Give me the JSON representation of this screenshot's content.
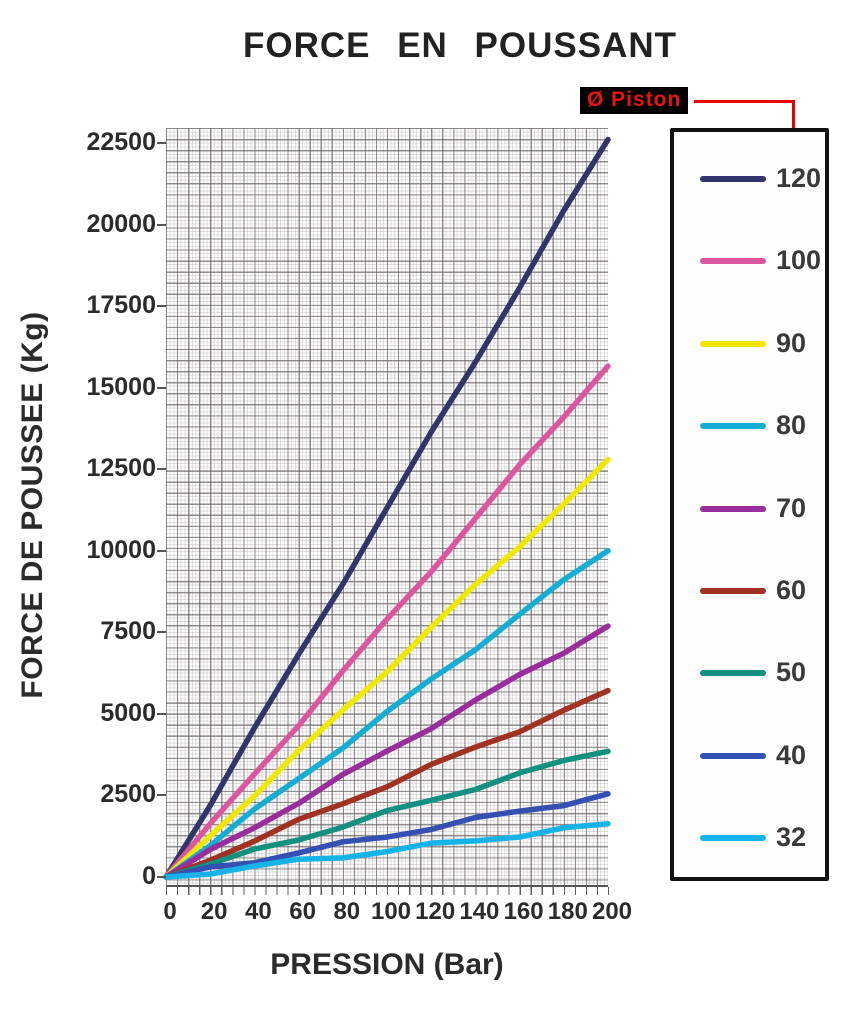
{
  "title": "FORCE EN POUSSANT",
  "axes": {
    "x_label": "PRESSION (Bar)",
    "y_label": "FORCE DE POUSSEE (Kg)",
    "x_tick_labels": [
      "0",
      "20",
      "40",
      "60",
      "80",
      "100",
      "120",
      "140",
      "160",
      "180",
      "200"
    ],
    "y_tick_labels": [
      "0",
      "2500",
      "5000",
      "7500",
      "10000",
      "12500",
      "15000",
      "17500",
      "20000",
      "22500"
    ]
  },
  "legend": {
    "title": "Ø Piston",
    "entries": [
      {
        "label": "120",
        "color": "#31356b"
      },
      {
        "label": "100",
        "color": "#dc559f"
      },
      {
        "label": "90",
        "color": "#f0e800"
      },
      {
        "label": "80",
        "color": "#15aed2"
      },
      {
        "label": "70",
        "color": "#9a2d9e"
      },
      {
        "label": "60",
        "color": "#a13122"
      },
      {
        "label": "50",
        "color": "#13907f"
      },
      {
        "label": "40",
        "color": "#3350b2"
      },
      {
        "label": "32",
        "color": "#15b3e6"
      }
    ]
  },
  "colors": {
    "accent_red": "#ec0000",
    "piston_label_bg": "#000000",
    "grid_line": "#5f5858",
    "text": "#2b2b2b"
  },
  "chart_data": {
    "type": "line",
    "title": "FORCE EN POUSSANT",
    "xlabel": "PRESSION (Bar)",
    "ylabel": "FORCE DE POUSSEE (Kg)",
    "xlim": [
      0,
      200
    ],
    "ylim": [
      0,
      23000
    ],
    "grid": true,
    "legend_position": "right",
    "legend_title": "Ø Piston",
    "x": [
      0,
      20,
      40,
      60,
      80,
      100,
      120,
      140,
      160,
      180,
      200
    ],
    "series": [
      {
        "name": "120",
        "color": "#31356b",
        "values": [
          0,
          2262,
          4524,
          6786,
          9048,
          11310,
          13572,
          15834,
          18096,
          20357,
          22619
        ]
      },
      {
        "name": "100",
        "color": "#dc559f",
        "values": [
          0,
          1571,
          3142,
          4712,
          6283,
          7854,
          9425,
          10996,
          12566,
          14137,
          15708
        ]
      },
      {
        "name": "90",
        "color": "#f0e800",
        "values": [
          0,
          1272,
          2545,
          3817,
          5089,
          6362,
          7634,
          8906,
          10179,
          11451,
          12723
        ]
      },
      {
        "name": "80",
        "color": "#15aed2",
        "values": [
          0,
          1005,
          2011,
          3016,
          4021,
          5027,
          6032,
          7037,
          8042,
          9048,
          10053
        ]
      },
      {
        "name": "70",
        "color": "#9a2d9e",
        "values": [
          0,
          770,
          1539,
          2309,
          3079,
          3848,
          4618,
          5388,
          6158,
          6927,
          7697
        ]
      },
      {
        "name": "60",
        "color": "#a13122",
        "values": [
          0,
          565,
          1131,
          1696,
          2262,
          2827,
          3393,
          3958,
          4524,
          5089,
          5655
        ]
      },
      {
        "name": "50",
        "color": "#13907f",
        "values": [
          0,
          393,
          785,
          1178,
          1571,
          1963,
          2356,
          2749,
          3142,
          3534,
          3927
        ]
      },
      {
        "name": "40",
        "color": "#3350b2",
        "values": [
          0,
          251,
          503,
          754,
          1005,
          1257,
          1508,
          1759,
          2011,
          2262,
          2513
        ]
      },
      {
        "name": "32",
        "color": "#15b3e6",
        "values": [
          0,
          161,
          322,
          483,
          643,
          804,
          965,
          1126,
          1287,
          1448,
          1608
        ]
      }
    ]
  }
}
